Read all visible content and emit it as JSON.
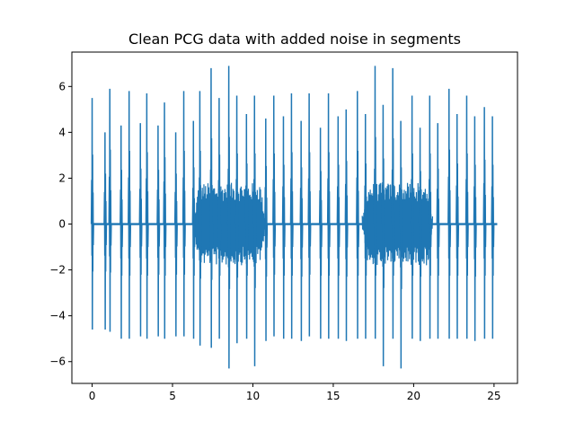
{
  "chart_data": {
    "type": "line",
    "title": "Clean PCG data with added noise in segments",
    "xlabel": "",
    "ylabel": "",
    "xlim": [
      -1.26,
      26.46
    ],
    "ylim": [
      -6.95,
      7.5
    ],
    "xticks": [
      0,
      5,
      10,
      15,
      20,
      25
    ],
    "xtick_labels": [
      "0",
      "5",
      "10",
      "15",
      "20",
      "25"
    ],
    "yticks": [
      -6,
      -4,
      -2,
      0,
      2,
      4,
      6
    ],
    "ytick_labels": [
      "−6",
      "−4",
      "−2",
      "0",
      "2",
      "4",
      "6"
    ],
    "grid": false,
    "legend": "none",
    "series": [
      {
        "color": "#1f77b4",
        "x_range": [
          0,
          25.2
        ],
        "beat_times": [
          0.0,
          0.8,
          1.1,
          1.8,
          2.3,
          3.0,
          3.4,
          4.1,
          4.5,
          5.2,
          5.7,
          6.3,
          6.7,
          7.4,
          7.9,
          8.5,
          9.0,
          9.6,
          10.1,
          10.8,
          11.3,
          11.9,
          12.4,
          13.0,
          13.5,
          14.2,
          14.7,
          15.3,
          15.8,
          16.5,
          17.0,
          17.6,
          18.1,
          18.7,
          19.2,
          19.9,
          20.4,
          21.0,
          21.5,
          22.2,
          22.7,
          23.3,
          23.8,
          24.4,
          24.9
        ],
        "beat_peaks": [
          5.5,
          4.0,
          5.9,
          4.3,
          5.8,
          4.4,
          5.7,
          4.3,
          5.3,
          4.0,
          5.8,
          4.5,
          5.8,
          6.8,
          5.5,
          6.9,
          5.6,
          4.8,
          5.6,
          4.6,
          5.6,
          4.7,
          5.7,
          4.5,
          5.7,
          4.2,
          5.7,
          4.7,
          5.0,
          5.8,
          4.8,
          6.9,
          5.2,
          6.8,
          4.5,
          5.6,
          4.2,
          5.6,
          4.4,
          5.9,
          4.8,
          5.6,
          4.7,
          5.1,
          4.7
        ],
        "beat_troughs": [
          -4.6,
          -4.6,
          -4.7,
          -5.0,
          -5.0,
          -4.9,
          -5.0,
          -4.9,
          -5.0,
          -4.9,
          -4.9,
          -5.0,
          -5.3,
          -5.4,
          -5.0,
          -6.3,
          -5.2,
          -5.0,
          -6.2,
          -5.1,
          -4.9,
          -5.0,
          -5.0,
          -5.1,
          -4.9,
          -5.0,
          -5.0,
          -5.0,
          -5.1,
          -5.0,
          -5.0,
          -5.0,
          -6.2,
          -5.0,
          -6.3,
          -5.0,
          -5.1,
          -5.0,
          -5.0,
          -5.0,
          -5.0,
          -5.0,
          -5.1,
          -5.0,
          -5.0
        ],
        "noise_segments": [
          {
            "x_start": 6.3,
            "x_end": 10.8,
            "amplitude": 1.8
          },
          {
            "x_start": 16.8,
            "x_end": 21.2,
            "amplitude": 1.8
          }
        ]
      }
    ]
  }
}
